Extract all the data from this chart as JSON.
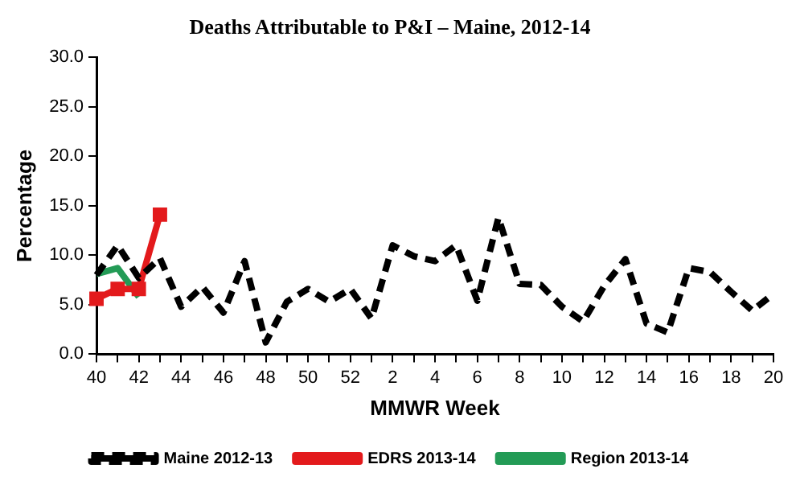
{
  "chart_data": {
    "type": "line",
    "title": "Deaths Attributable to P&I – Maine, 2012-14",
    "xlabel": "MMWR Week",
    "ylabel": "Percentage",
    "categories": [
      "40",
      null,
      "42",
      null,
      "44",
      null,
      "46",
      null,
      "48",
      null,
      "50",
      null,
      "52",
      null,
      "2",
      null,
      "4",
      null,
      "6",
      null,
      "8",
      null,
      "10",
      null,
      "12",
      null,
      "14",
      null,
      "16",
      null,
      "18",
      null,
      "20"
    ],
    "series": [
      {
        "name": "Maine 2012-13",
        "color": "#000000",
        "line_style": "dashed",
        "marker": "none",
        "values": [
          8.0,
          11.0,
          7.7,
          9.7,
          4.8,
          6.8,
          4.2,
          9.4,
          1.2,
          5.3,
          6.6,
          5.3,
          6.6,
          3.6,
          11.0,
          9.9,
          9.4,
          11.0,
          5.4,
          13.8,
          7.1,
          7.0,
          4.8,
          3.3,
          6.9,
          9.6,
          3.1,
          2.2,
          8.7,
          8.3,
          6.3,
          4.4,
          6.1
        ]
      },
      {
        "name": "EDRS 2013-14",
        "color": "#e31a1c",
        "line_style": "solid",
        "marker": "square",
        "values": [
          5.6,
          6.6,
          6.6,
          14.1,
          null,
          null,
          null,
          null,
          null,
          null,
          null,
          null,
          null,
          null,
          null,
          null,
          null,
          null,
          null,
          null,
          null,
          null,
          null,
          null,
          null,
          null,
          null,
          null,
          null,
          null,
          null,
          null,
          null
        ]
      },
      {
        "name": "Region 2013-14",
        "color": "#239b56",
        "line_style": "solid",
        "marker": "none",
        "values": [
          8.1,
          8.7,
          5.8,
          null,
          null,
          null,
          null,
          null,
          null,
          null,
          null,
          null,
          null,
          null,
          null,
          null,
          null,
          null,
          null,
          null,
          null,
          null,
          null,
          null,
          null,
          null,
          null,
          null,
          null,
          null,
          null,
          null,
          null
        ]
      }
    ],
    "ylim": [
      0,
      30
    ],
    "yticks": [
      {
        "value": 0,
        "label": "0.0"
      },
      {
        "value": 5,
        "label": "5.0"
      },
      {
        "value": 10,
        "label": "10.0"
      },
      {
        "value": 15,
        "label": "15.0"
      },
      {
        "value": 20,
        "label": "20.0"
      },
      {
        "value": 25,
        "label": "25.0"
      },
      {
        "value": 30,
        "label": "30.0"
      }
    ],
    "grid": false,
    "legend": "bottom"
  }
}
